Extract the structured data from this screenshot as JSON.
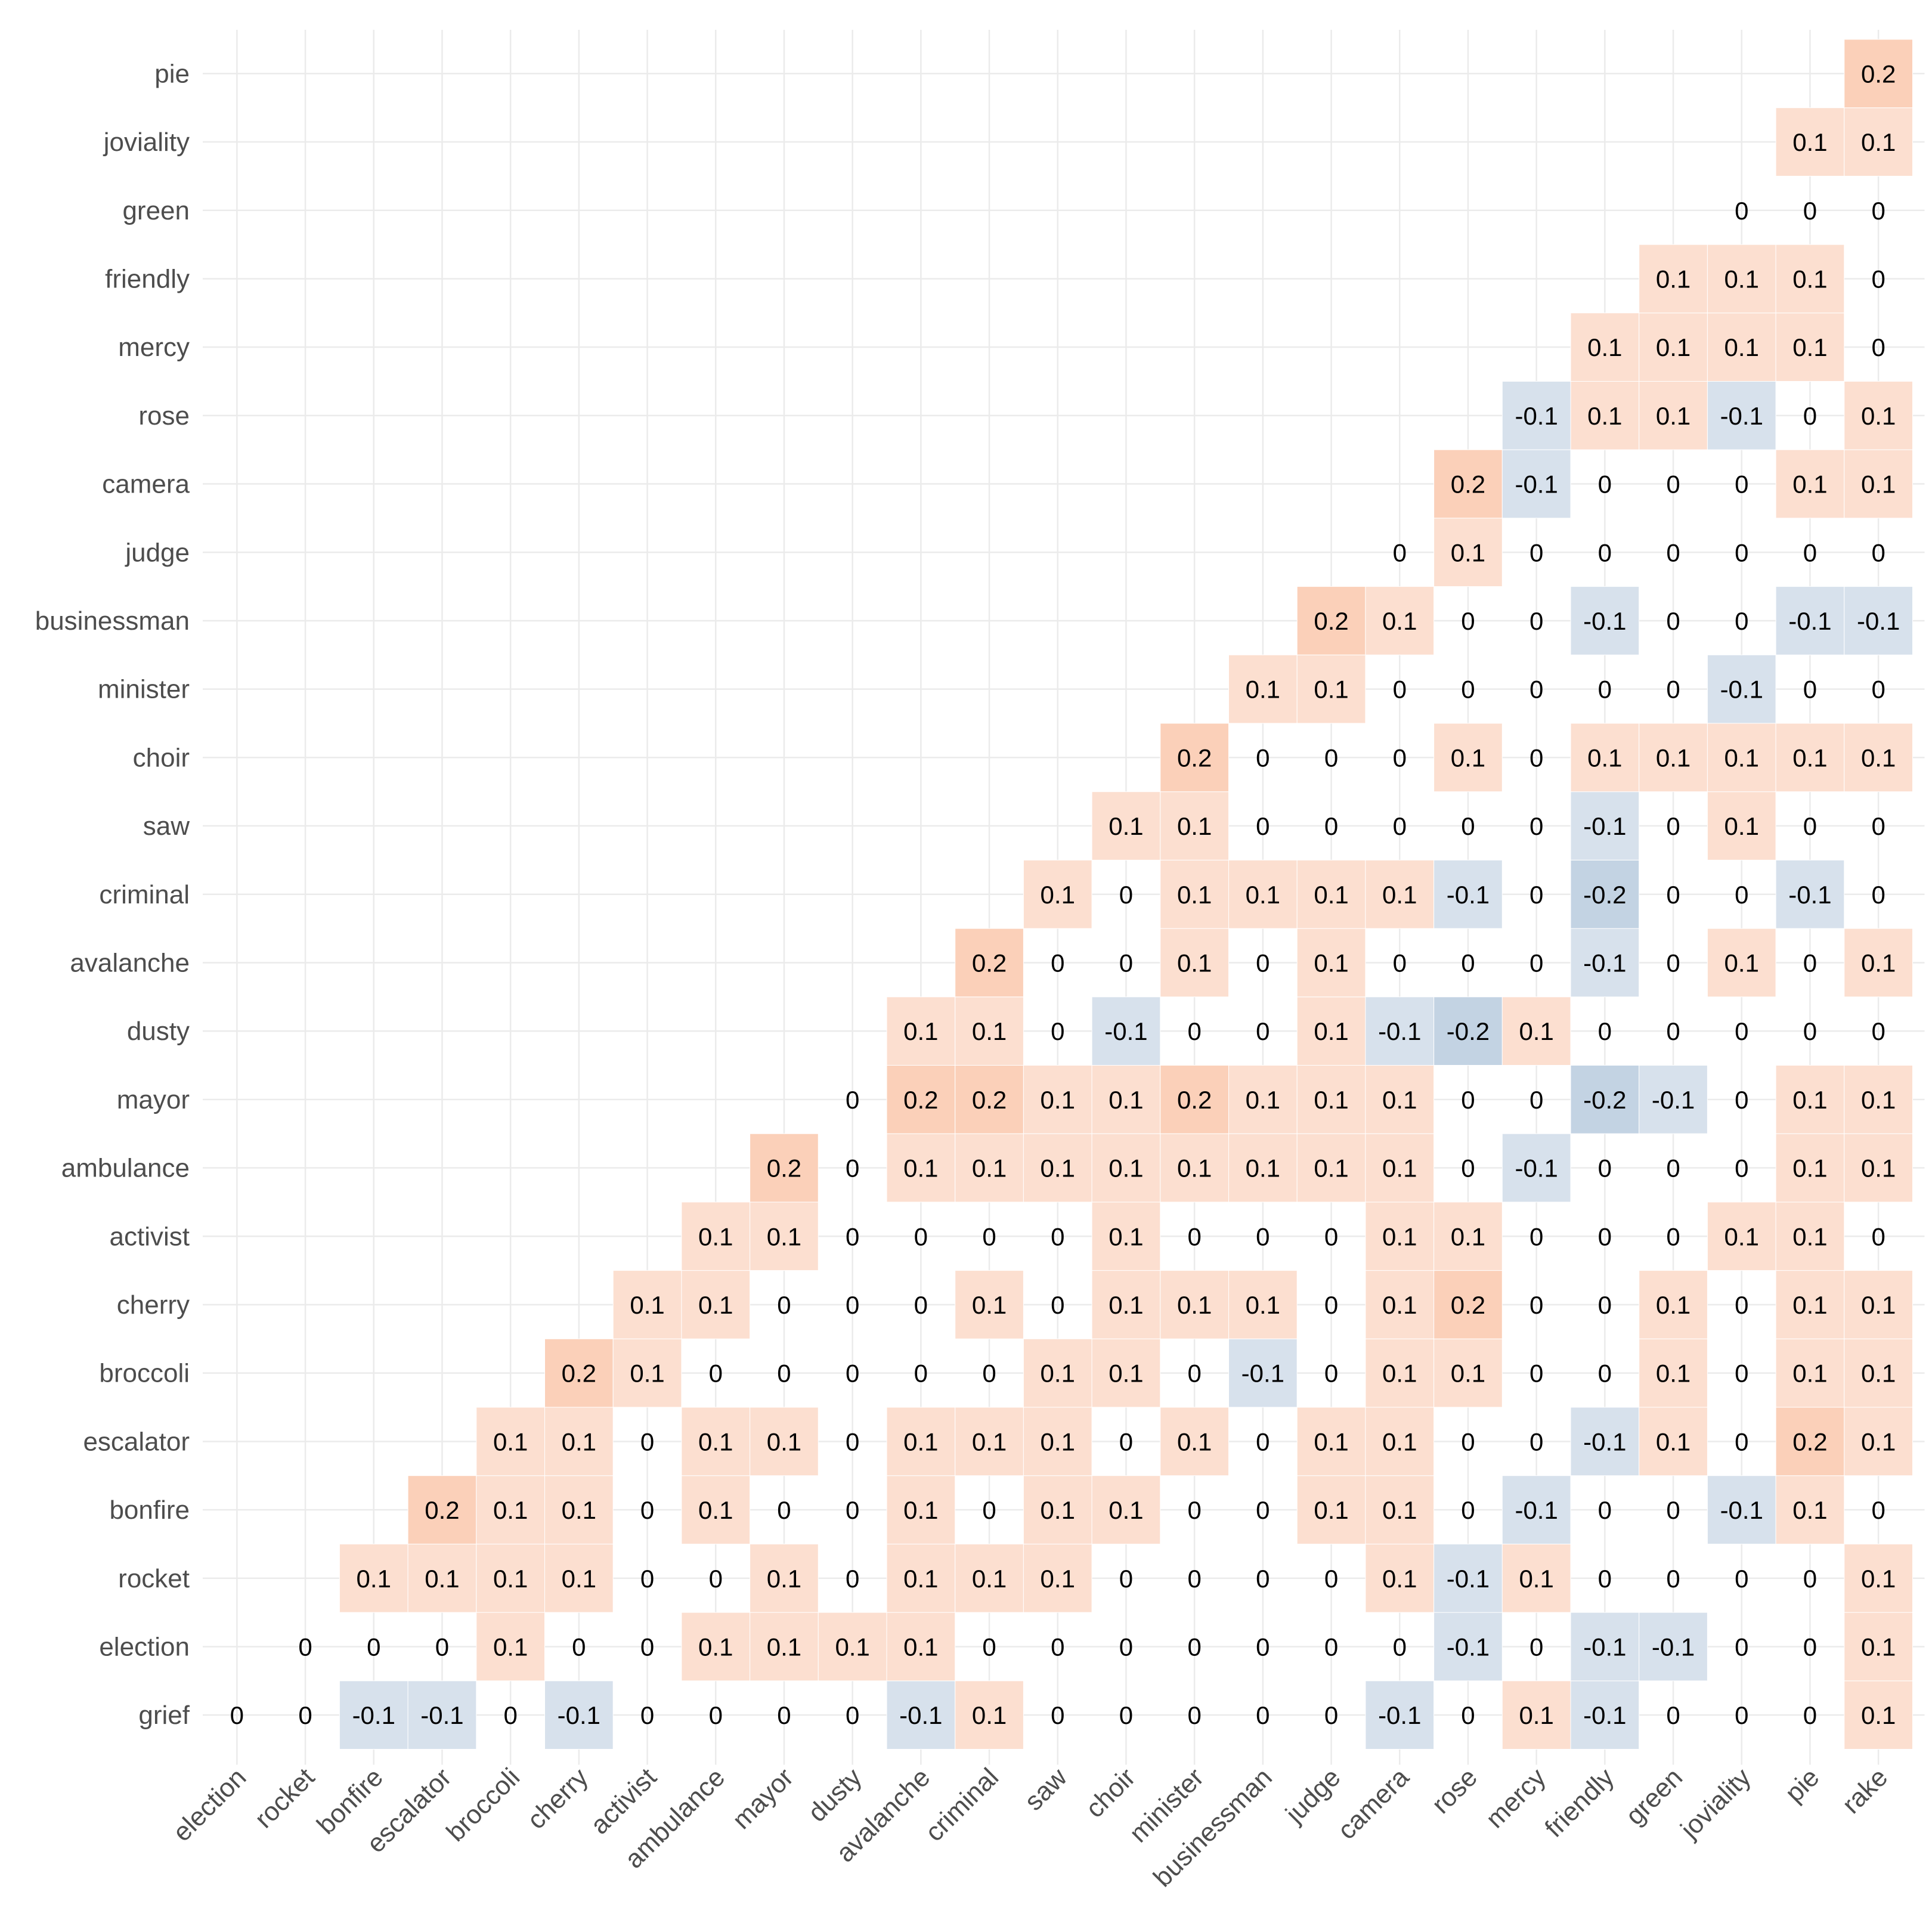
{
  "chart_data": {
    "type": "heatmap",
    "title": "",
    "xlabel": "",
    "ylabel": "",
    "x_labels": [
      "election",
      "rocket",
      "bonfire",
      "escalator",
      "broccoli",
      "cherry",
      "activist",
      "ambulance",
      "mayor",
      "dusty",
      "avalanche",
      "criminal",
      "saw",
      "choir",
      "minister",
      "businessman",
      "judge",
      "camera",
      "rose",
      "mercy",
      "friendly",
      "green",
      "joviality",
      "pie",
      "rake"
    ],
    "y_labels": [
      "grief",
      "election",
      "rocket",
      "bonfire",
      "escalator",
      "broccoli",
      "cherry",
      "activist",
      "ambulance",
      "mayor",
      "dusty",
      "avalanche",
      "criminal",
      "saw",
      "choir",
      "minister",
      "businessman",
      "judge",
      "camera",
      "rose",
      "mercy",
      "friendly",
      "green",
      "joviality",
      "pie"
    ],
    "values": [
      [
        "0",
        "0",
        "-0.1",
        "-0.1",
        "0",
        "-0.1",
        "0",
        "0",
        "0",
        "0",
        "-0.1",
        "0.1",
        "0",
        "0",
        "0",
        "0",
        "0",
        "-0.1",
        "0",
        "0.1",
        "-0.1",
        "0",
        "0",
        "0",
        "0.1"
      ],
      [
        null,
        "0",
        "0",
        "0",
        "0.1",
        "0",
        "0",
        "0.1",
        "0.1",
        "0.1",
        "0.1",
        "0",
        "0",
        "0",
        "0",
        "0",
        "0",
        "0",
        "-0.1",
        "0",
        "-0.1",
        "-0.1",
        "0",
        "0",
        "0.1"
      ],
      [
        null,
        null,
        "0.1",
        "0.1",
        "0.1",
        "0.1",
        "0",
        "0",
        "0.1",
        "0",
        "0.1",
        "0.1",
        "0.1",
        "0",
        "0",
        "0",
        "0",
        "0.1",
        "-0.1",
        "0.1",
        "0",
        "0",
        "0",
        "0",
        "0.1"
      ],
      [
        null,
        null,
        null,
        "0.2",
        "0.1",
        "0.1",
        "0",
        "0.1",
        "0",
        "0",
        "0.1",
        "0",
        "0.1",
        "0.1",
        "0",
        "0",
        "0.1",
        "0.1",
        "0",
        "-0.1",
        "0",
        "0",
        "-0.1",
        "0.1",
        "0"
      ],
      [
        null,
        null,
        null,
        null,
        "0.1",
        "0.1",
        "0",
        "0.1",
        "0.1",
        "0",
        "0.1",
        "0.1",
        "0.1",
        "0",
        "0.1",
        "0",
        "0.1",
        "0.1",
        "0",
        "0",
        "-0.1",
        "0.1",
        "0",
        "0.2",
        "0.1"
      ],
      [
        null,
        null,
        null,
        null,
        null,
        "0.2",
        "0.1",
        "0",
        "0",
        "0",
        "0",
        "0",
        "0.1",
        "0.1",
        "0",
        "-0.1",
        "0",
        "0.1",
        "0.1",
        "0",
        "0",
        "0.1",
        "0",
        "0.1",
        "0.1"
      ],
      [
        null,
        null,
        null,
        null,
        null,
        null,
        "0.1",
        "0.1",
        "0",
        "0",
        "0",
        "0.1",
        "0",
        "0.1",
        "0.1",
        "0.1",
        "0",
        "0.1",
        "0.2",
        "0",
        "0",
        "0.1",
        "0",
        "0.1",
        "0.1"
      ],
      [
        null,
        null,
        null,
        null,
        null,
        null,
        null,
        "0.1",
        "0.1",
        "0",
        "0",
        "0",
        "0",
        "0.1",
        "0",
        "0",
        "0",
        "0.1",
        "0.1",
        "0",
        "0",
        "0",
        "0.1",
        "0.1",
        "0"
      ],
      [
        null,
        null,
        null,
        null,
        null,
        null,
        null,
        null,
        "0.2",
        "0",
        "0.1",
        "0.1",
        "0.1",
        "0.1",
        "0.1",
        "0.1",
        "0.1",
        "0.1",
        "0",
        "-0.1",
        "0",
        "0",
        "0",
        "0.1",
        "0.1"
      ],
      [
        null,
        null,
        null,
        null,
        null,
        null,
        null,
        null,
        null,
        "0",
        "0.2",
        "0.2",
        "0.1",
        "0.1",
        "0.2",
        "0.1",
        "0.1",
        "0.1",
        "0",
        "0",
        "-0.2",
        "-0.1",
        "0",
        "0.1",
        "0.1"
      ],
      [
        null,
        null,
        null,
        null,
        null,
        null,
        null,
        null,
        null,
        null,
        "0.1",
        "0.1",
        "0",
        "-0.1",
        "0",
        "0",
        "0.1",
        "-0.1",
        "-0.2",
        "0.1",
        "0",
        "0",
        "0",
        "0",
        "0"
      ],
      [
        null,
        null,
        null,
        null,
        null,
        null,
        null,
        null,
        null,
        null,
        null,
        "0.2",
        "0",
        "0",
        "0.1",
        "0",
        "0.1",
        "0",
        "0",
        "0",
        "-0.1",
        "0",
        "0.1",
        "0",
        "0.1"
      ],
      [
        null,
        null,
        null,
        null,
        null,
        null,
        null,
        null,
        null,
        null,
        null,
        null,
        "0.1",
        "0",
        "0.1",
        "0.1",
        "0.1",
        "0.1",
        "-0.1",
        "0",
        "-0.2",
        "0",
        "0",
        "-0.1",
        "0"
      ],
      [
        null,
        null,
        null,
        null,
        null,
        null,
        null,
        null,
        null,
        null,
        null,
        null,
        null,
        "0.1",
        "0.1",
        "0",
        "0",
        "0",
        "0",
        "0",
        "-0.1",
        "0",
        "0.1",
        "0",
        "0"
      ],
      [
        null,
        null,
        null,
        null,
        null,
        null,
        null,
        null,
        null,
        null,
        null,
        null,
        null,
        null,
        "0.2",
        "0",
        "0",
        "0",
        "0.1",
        "0",
        "0.1",
        "0.1",
        "0.1",
        "0.1",
        "0.1"
      ],
      [
        null,
        null,
        null,
        null,
        null,
        null,
        null,
        null,
        null,
        null,
        null,
        null,
        null,
        null,
        null,
        "0.1",
        "0.1",
        "0",
        "0",
        "0",
        "0",
        "0",
        "-0.1",
        "0",
        "0"
      ],
      [
        null,
        null,
        null,
        null,
        null,
        null,
        null,
        null,
        null,
        null,
        null,
        null,
        null,
        null,
        null,
        null,
        "0.2",
        "0.1",
        "0",
        "0",
        "-0.1",
        "0",
        "0",
        "-0.1",
        "-0.1"
      ],
      [
        null,
        null,
        null,
        null,
        null,
        null,
        null,
        null,
        null,
        null,
        null,
        null,
        null,
        null,
        null,
        null,
        null,
        "0",
        "0.1",
        "0",
        "0",
        "0",
        "0",
        "0",
        "0"
      ],
      [
        null,
        null,
        null,
        null,
        null,
        null,
        null,
        null,
        null,
        null,
        null,
        null,
        null,
        null,
        null,
        null,
        null,
        null,
        "0.2",
        "-0.1",
        "0",
        "0",
        "0",
        "0.1",
        "0.1"
      ],
      [
        null,
        null,
        null,
        null,
        null,
        null,
        null,
        null,
        null,
        null,
        null,
        null,
        null,
        null,
        null,
        null,
        null,
        null,
        null,
        "-0.1",
        "0.1",
        "0.1",
        "-0.1",
        "0",
        "0.1"
      ],
      [
        null,
        null,
        null,
        null,
        null,
        null,
        null,
        null,
        null,
        null,
        null,
        null,
        null,
        null,
        null,
        null,
        null,
        null,
        null,
        null,
        "0.1",
        "0.1",
        "0.1",
        "0.1",
        "0"
      ],
      [
        null,
        null,
        null,
        null,
        null,
        null,
        null,
        null,
        null,
        null,
        null,
        null,
        null,
        null,
        null,
        null,
        null,
        null,
        null,
        null,
        null,
        "0.1",
        "0.1",
        "0.1",
        "0"
      ],
      [
        null,
        null,
        null,
        null,
        null,
        null,
        null,
        null,
        null,
        null,
        null,
        null,
        null,
        null,
        null,
        null,
        null,
        null,
        null,
        null,
        null,
        null,
        "0",
        "0",
        "0"
      ],
      [
        null,
        null,
        null,
        null,
        null,
        null,
        null,
        null,
        null,
        null,
        null,
        null,
        null,
        null,
        null,
        null,
        null,
        null,
        null,
        null,
        null,
        null,
        null,
        "0.1",
        "0.1"
      ],
      [
        null,
        null,
        null,
        null,
        null,
        null,
        null,
        null,
        null,
        null,
        null,
        null,
        null,
        null,
        null,
        null,
        null,
        null,
        null,
        null,
        null,
        null,
        null,
        null,
        "0.2"
      ]
    ],
    "color_scale": {
      "negative": "#dde6ef",
      "zero": "#ffffff",
      "positive": "#fcd9c8"
    },
    "grid": true,
    "legend": "none"
  }
}
